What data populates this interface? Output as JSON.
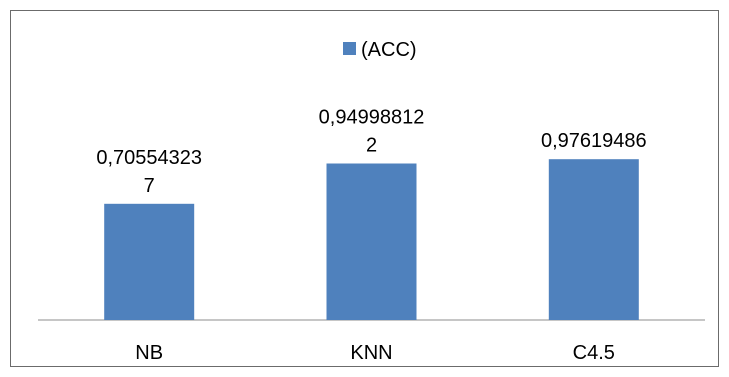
{
  "chart_data": {
    "type": "bar",
    "categories": [
      "NB",
      "KNN",
      "C4.5"
    ],
    "series": [
      {
        "name": "(ACC)",
        "values": [
          0.705543237,
          0.949988122,
          0.97619486
        ],
        "labels": [
          [
            "0,70554323",
            "7"
          ],
          [
            "0,94998812",
            "2"
          ],
          [
            "0,97619486"
          ]
        ],
        "color": "#4f81bd"
      }
    ],
    "legend_position": "top-center",
    "ylim": [
      0,
      1.7
    ],
    "grid": false,
    "title": "",
    "xlabel": "",
    "ylabel": ""
  }
}
